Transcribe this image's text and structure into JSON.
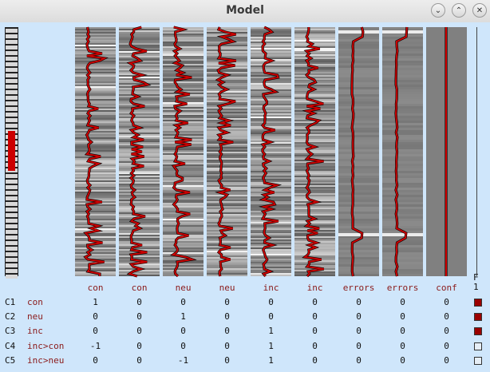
{
  "window": {
    "title": "Model",
    "controls": [
      "minimize",
      "maximize",
      "close"
    ]
  },
  "design": {
    "column_names": [
      "con",
      "con",
      "neu",
      "neu",
      "inc",
      "inc",
      "errors",
      "errors",
      "conf"
    ],
    "flag_header": "F",
    "flag_sub": "1",
    "contrasts": [
      {
        "id": "C1",
        "name": "con",
        "weights": [
          "1",
          "0",
          "0",
          "0",
          "0",
          "0",
          "0",
          "0",
          "0"
        ],
        "filled": true
      },
      {
        "id": "C2",
        "name": "neu",
        "weights": [
          "0",
          "0",
          "1",
          "0",
          "0",
          "0",
          "0",
          "0",
          "0"
        ],
        "filled": true
      },
      {
        "id": "C3",
        "name": "inc",
        "weights": [
          "0",
          "0",
          "0",
          "0",
          "1",
          "0",
          "0",
          "0",
          "0"
        ],
        "filled": true
      },
      {
        "id": "C4",
        "name": "inc>con",
        "weights": [
          "-1",
          "0",
          "0",
          "0",
          "1",
          "0",
          "0",
          "0",
          "0"
        ],
        "filled": false
      },
      {
        "id": "C5",
        "name": "inc>neu",
        "weights": [
          "0",
          "0",
          "-1",
          "0",
          "1",
          "0",
          "0",
          "0",
          "0"
        ],
        "filled": false
      }
    ],
    "accent_red": "#cc0000",
    "box_filled_color": "#9b0000"
  }
}
